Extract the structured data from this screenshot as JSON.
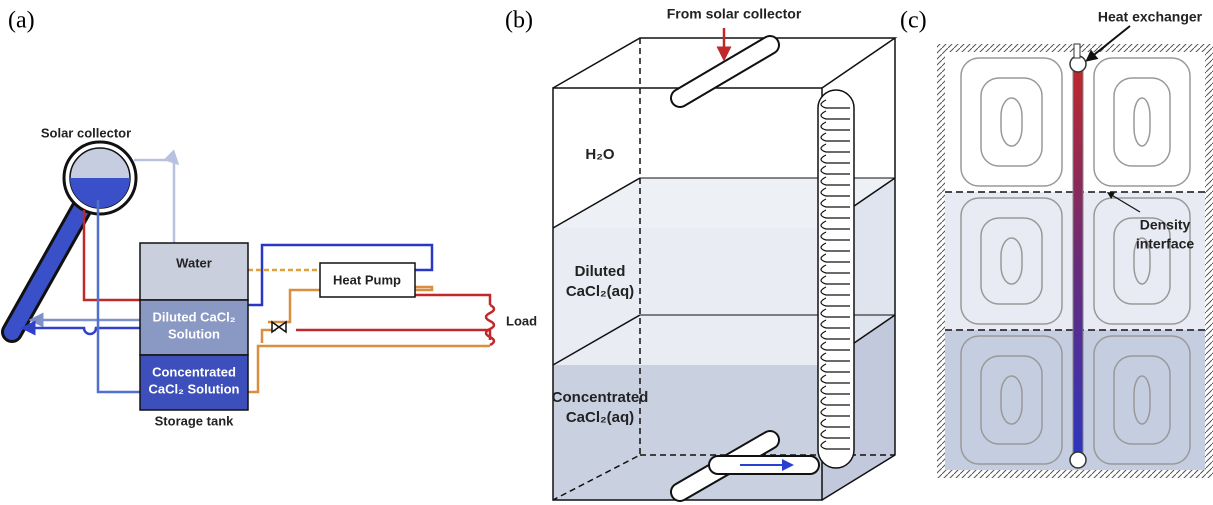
{
  "panel_a": {
    "label": "(a)",
    "solar_collector": "Solar collector",
    "water": "Water",
    "diluted": {
      "lines": [
        "Diluted CaCl₂",
        "Solution"
      ]
    },
    "concentrated": {
      "lines": [
        "Concentrated",
        "CaCl₂ Solution"
      ]
    },
    "storage_tank": "Storage tank",
    "heat_pump": "Heat Pump",
    "load": "Load"
  },
  "panel_b": {
    "label": "(b)",
    "from_solar": "From solar collector",
    "h2o": "H₂O",
    "diluted": {
      "lines": [
        "Diluted",
        "CaCl₂(aq)"
      ]
    },
    "concentrated": {
      "lines": [
        "Concentrated",
        "CaCl₂(aq)"
      ]
    }
  },
  "panel_c": {
    "label": "(c)",
    "heat_exchanger": "Heat exchanger",
    "density_interface": {
      "lines": [
        "Density",
        "interface"
      ]
    }
  }
}
